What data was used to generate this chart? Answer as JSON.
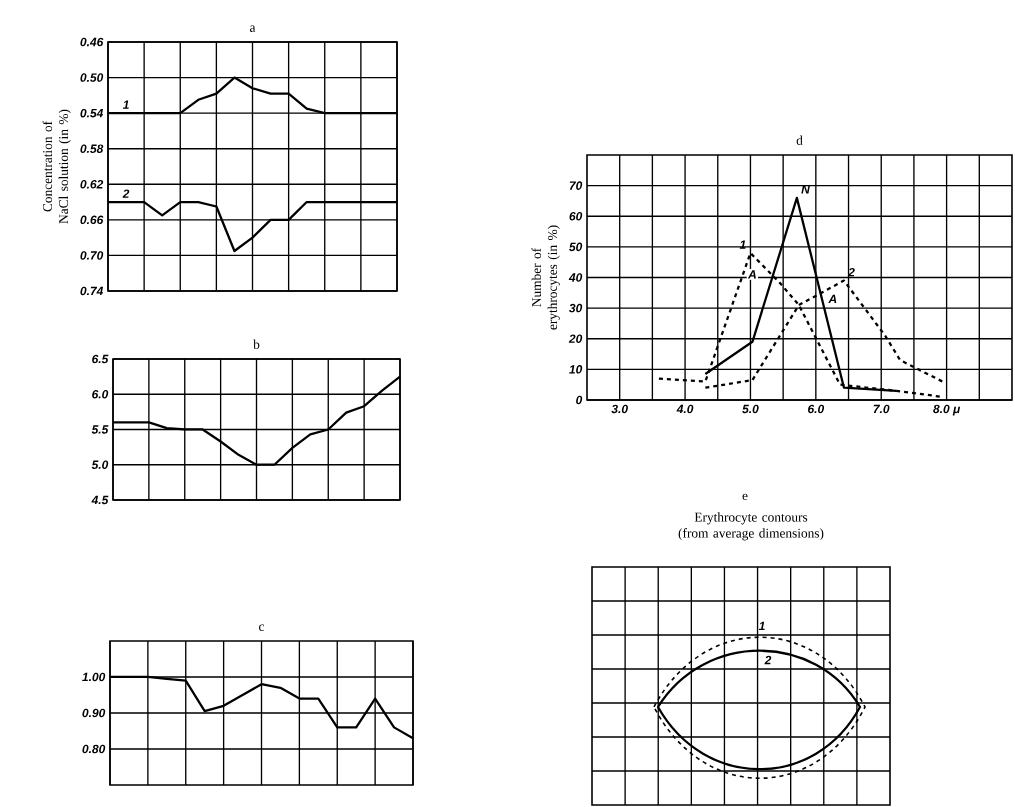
{
  "chart_data": [
    {
      "type": "line",
      "title": "a",
      "ylabel": "Concentration of NaCl solution (in %)",
      "categories": [
        null,
        null,
        null,
        null,
        null,
        null,
        null,
        null,
        null,
        null,
        null,
        null,
        null,
        null,
        null,
        null,
        null
      ],
      "ylim": [
        0.74,
        0.46
      ],
      "yticks": [
        {
          "value": 0.46,
          "label": "0.46"
        },
        {
          "value": 0.5,
          "label": "0.50"
        },
        {
          "value": 0.54,
          "label": "0.54"
        },
        {
          "value": 0.58,
          "label": "0.58"
        },
        {
          "value": 0.62,
          "label": "0.62"
        },
        {
          "value": 0.66,
          "label": "0.66"
        },
        {
          "value": 0.7,
          "label": "0.70"
        },
        {
          "value": 0.74,
          "label": "0.74"
        }
      ],
      "grid": true,
      "tick_labels": "y",
      "series": [
        {
          "name": "1",
          "color": "#000000",
          "values": [
            0.54,
            0.54,
            0.54,
            0.54,
            0.54,
            0.525,
            0.518,
            0.5,
            0.512,
            0.518,
            0.518,
            0.535,
            0.54,
            0.54,
            0.54,
            0.54,
            0.54
          ]
        },
        {
          "name": "2",
          "color": "#000000",
          "values": [
            0.64,
            0.64,
            0.64,
            0.655,
            0.64,
            0.64,
            0.645,
            0.695,
            0.68,
            0.66,
            0.66,
            0.64,
            0.64,
            0.64,
            0.64,
            0.64,
            0.64
          ]
        }
      ]
    },
    {
      "type": "line",
      "title": "b",
      "categories": [
        null,
        null,
        null,
        null,
        null,
        null,
        null,
        null,
        null,
        null,
        null,
        null,
        null,
        null,
        null,
        null,
        null
      ],
      "ylim": [
        4.5,
        6.5
      ],
      "yticks": [
        {
          "value": 4.5,
          "label": "4.5"
        },
        {
          "value": 5.0,
          "label": "5.0"
        },
        {
          "value": 5.5,
          "label": "5.5"
        },
        {
          "value": 6.0,
          "label": "6.0"
        },
        {
          "value": 6.5,
          "label": "6.5"
        }
      ],
      "grid": true,
      "tick_labels": "y",
      "series": [
        {
          "color": "#000000",
          "values": [
            5.6,
            5.6,
            5.6,
            5.52,
            5.5,
            5.5,
            5.33,
            5.14,
            5.0,
            5.0,
            5.24,
            5.43,
            5.5,
            5.74,
            5.83,
            6.05,
            6.25
          ]
        }
      ]
    },
    {
      "type": "line",
      "title": "c",
      "categories": [
        null,
        null,
        null,
        null,
        null,
        null,
        null,
        null,
        null,
        null,
        null,
        null,
        null,
        null,
        null,
        null,
        null
      ],
      "ylim": [
        0.7,
        1.1
      ],
      "yticks": [
        {
          "value": 0.8,
          "label": "0.80"
        },
        {
          "value": 0.9,
          "label": "0.90"
        },
        {
          "value": 1.0,
          "label": "1.00"
        }
      ],
      "grid": true,
      "tick_labels": "y",
      "series": [
        {
          "color": "#000000",
          "values": [
            1.0,
            1.0,
            1.0,
            0.995,
            0.99,
            0.905,
            0.92,
            0.95,
            0.98,
            0.97,
            0.94,
            0.94,
            0.86,
            0.86,
            0.94,
            0.86,
            0.83
          ]
        }
      ]
    },
    {
      "type": "line",
      "title": "d",
      "ylabel": "Number of erythrocytes (in %)",
      "xlim": [
        2.5,
        9.0
      ],
      "xticks": [
        {
          "value": 3,
          "label": "3.0"
        },
        {
          "value": 3.5,
          "label": null
        },
        {
          "value": 4,
          "label": "4.0"
        },
        {
          "value": 4.5,
          "label": null
        },
        {
          "value": 5,
          "label": "5.0"
        },
        {
          "value": 5.5,
          "label": null
        },
        {
          "value": 6,
          "label": "6.0"
        },
        {
          "value": 6.5,
          "label": null
        },
        {
          "value": 7,
          "label": "7.0"
        },
        {
          "value": 7.5,
          "label": null
        },
        {
          "value": 8,
          "label": "8.0 μ"
        },
        {
          "value": 8.5,
          "label": null
        }
      ],
      "ylim": [
        0,
        80
      ],
      "yticks": [
        0,
        10,
        20,
        30,
        40,
        50,
        60,
        70
      ],
      "grid": true,
      "series": [
        {
          "name": "1",
          "color": "#000000",
          "line_style": "dashed",
          "x": [
            3.6,
            4.31,
            5.0,
            5.46,
            5.74,
            6.37,
            7.23,
            7.94
          ],
          "values": [
            7,
            6,
            48,
            38,
            31,
            5,
            3,
            1
          ]
        },
        {
          "name": "N",
          "color": "#000000",
          "line_style": "solid",
          "x": [
            4.31,
            5.03,
            5.71,
            6.43,
            7.23
          ],
          "values": [
            8.5,
            19,
            66,
            4,
            3
          ]
        },
        {
          "name": "2",
          "color": "#000000",
          "line_style": "dashed",
          "x": [
            4.31,
            5.03,
            5.74,
            6.43,
            7.06,
            7.29,
            7.94
          ],
          "values": [
            4,
            6.5,
            31,
            39,
            21,
            13,
            6
          ]
        }
      ],
      "annotations": [
        {
          "text": "A",
          "x": 5.03,
          "y": 41
        },
        {
          "text": "A",
          "x": 6.26,
          "y": 33
        }
      ]
    },
    {
      "type": "other",
      "title": "e",
      "subtitle": "Erythrocyte contours (from average dimensions)",
      "annotations": [
        "1",
        "2"
      ]
    }
  ]
}
